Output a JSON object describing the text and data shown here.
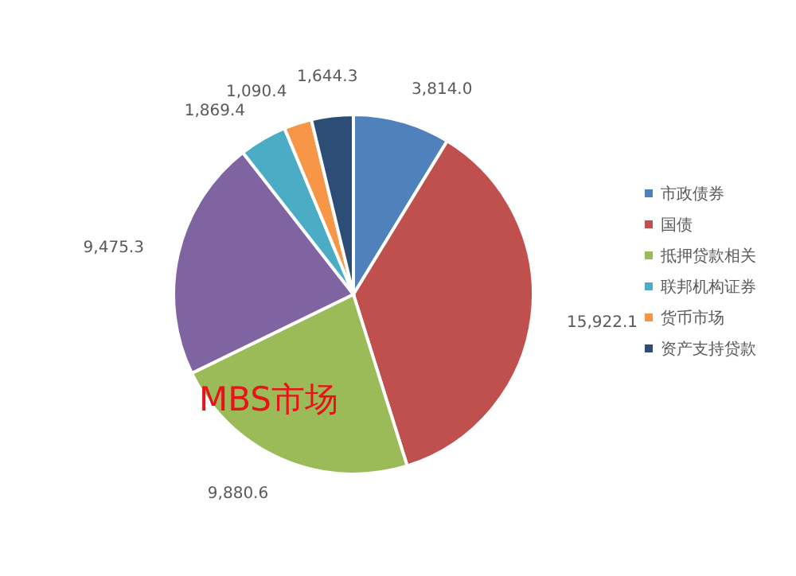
{
  "chart_data": {
    "type": "pie",
    "categories": [
      "市政债券",
      "国债",
      "抵押贷款相关",
      null,
      "联邦机构证券",
      "货币市场",
      "资产支持贷款"
    ],
    "values": [
      3814.0,
      15922.1,
      9880.6,
      9475.3,
      1869.4,
      1090.4,
      1644.3
    ],
    "value_labels": [
      "3,814.0",
      "15,922.1",
      "9,880.6",
      "9,475.3",
      "1,869.4",
      "1,090.4",
      "1,644.3"
    ],
    "colors": [
      "#4f81bd",
      "#c0504d",
      "#9bbb59",
      "#8064a2",
      "#4bacc6",
      "#f79646",
      "#2c4d75"
    ],
    "annotations": [
      "MBS市场"
    ],
    "legend": "right"
  }
}
